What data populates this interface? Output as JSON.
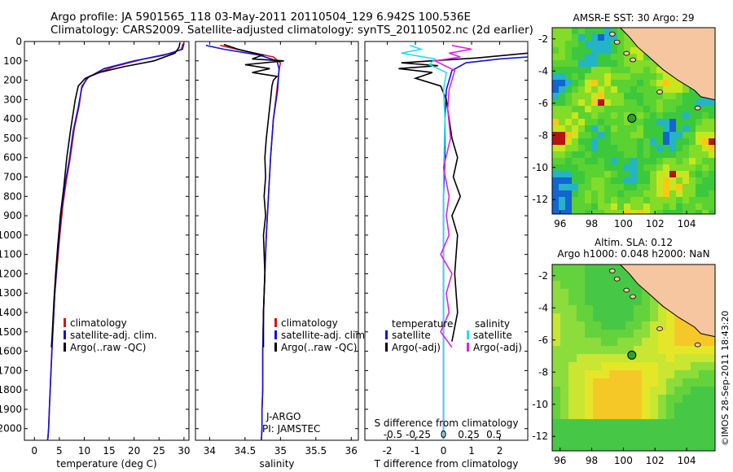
{
  "header": {
    "title_line1": "Argo profile: JA 5901565_118 03-May-2011 20110504_129 6.942S 100.536E",
    "title_line2": "Climatology: CARS2009. Satellite-adjusted climatology: synTS_20110502.nc (2d earlier)"
  },
  "watermark": "©IMOS 28-Sep-2011 18:43:20",
  "colors": {
    "climatology": "#e01010",
    "satellite": "#1010e0",
    "argo": "#000000",
    "cyan": "#20e0f0",
    "magenta": "#e020e0",
    "land": "#f5c6a0"
  },
  "chart_data": [
    {
      "id": "temperature",
      "type": "line",
      "xlabel": "temperature (deg C)",
      "ylabel": "",
      "xlim": [
        -2,
        31
      ],
      "ylim": [
        2060,
        0
      ],
      "xticks": [
        0,
        5,
        10,
        15,
        20,
        25,
        30
      ],
      "xticklabels": [
        "0",
        "5",
        "10",
        "15",
        "20",
        "25",
        "30"
      ],
      "yticks": [
        0,
        100,
        200,
        300,
        400,
        500,
        600,
        700,
        800,
        900,
        1000,
        1100,
        1200,
        1300,
        1400,
        1500,
        1600,
        1700,
        1800,
        1900,
        2000
      ],
      "yticklabels": [
        "0",
        "100",
        "200",
        "300",
        "400",
        "500",
        "600",
        "700",
        "800",
        "900",
        "1000",
        "1100",
        "1200",
        "1300",
        "1400",
        "1500",
        "1600",
        "1700",
        "1800",
        "1900",
        "2000"
      ],
      "legend": [
        "climatology",
        "satellite-adj. clim.",
        "Argo(..raw -QC)"
      ],
      "annotations": [],
      "series": [
        {
          "name": "climatology",
          "color": "#e01010",
          "x": [
            29.8,
            29.5,
            27.5,
            22,
            16,
            11,
            9.5,
            9,
            8,
            7.2,
            6.4,
            5.7,
            5.1,
            4.6,
            4.1,
            3.8,
            3.5,
            3.25,
            3.0,
            2.85,
            2.7,
            2.6
          ],
          "y": [
            10,
            40,
            60,
            90,
            130,
            180,
            230,
            330,
            450,
            600,
            720,
            850,
            1000,
            1150,
            1300,
            1450,
            1600,
            1750,
            1900,
            2000,
            2050,
            2060
          ]
        },
        {
          "name": "satellite-adj. clim.",
          "color": "#1010e0",
          "x": [
            30.0,
            29.7,
            26,
            20,
            14,
            10.5,
            9.5,
            8.8,
            7.8,
            7.0,
            6.2,
            5.5,
            5.0,
            4.5,
            4.1,
            3.8,
            3.5,
            3.25,
            3.0,
            2.85,
            2.7,
            2.6
          ],
          "y": [
            10,
            40,
            70,
            100,
            140,
            190,
            240,
            340,
            460,
            610,
            730,
            860,
            1000,
            1150,
            1300,
            1450,
            1600,
            1750,
            1900,
            2000,
            2050,
            2060
          ]
        },
        {
          "name": "Argo(..raw -QC)",
          "color": "#000000",
          "x": [
            29.2,
            29.0,
            28.2,
            24,
            18,
            13,
            10.2,
            8.8,
            8.2,
            7.3,
            6.5,
            5.9,
            5.2,
            4.7,
            4.25,
            3.9,
            3.6,
            3.4
          ],
          "y": [
            5,
            30,
            60,
            100,
            130,
            160,
            190,
            230,
            300,
            450,
            600,
            750,
            900,
            1050,
            1200,
            1350,
            1500,
            1580
          ]
        }
      ]
    },
    {
      "id": "salinity",
      "type": "line",
      "xlabel": "salinity",
      "ylabel": "",
      "xlim": [
        33.8,
        36.1
      ],
      "ylim": [
        2060,
        0
      ],
      "xticks": [
        34,
        34.5,
        35,
        35.5,
        36
      ],
      "xticklabels": [
        "34",
        "34.5",
        "35",
        "35.5",
        "36"
      ],
      "yticks": [],
      "yticklabels": [],
      "legend": [
        "climatology",
        "satellite-adj. clim.",
        "Argo(..raw -QC)"
      ],
      "annotations": [
        "J-ARGO",
        "PI: JAMSTEC"
      ],
      "series": [
        {
          "name": "climatology",
          "color": "#e01010",
          "x": [
            34.15,
            34.5,
            34.9,
            35.0,
            34.98,
            34.95,
            34.9,
            34.86,
            34.83,
            34.8,
            34.78,
            34.76,
            34.75,
            34.75,
            34.74,
            34.74,
            34.73
          ],
          "y": [
            20,
            50,
            80,
            110,
            150,
            250,
            400,
            600,
            800,
            1000,
            1200,
            1400,
            1600,
            1800,
            1900,
            2000,
            2060
          ]
        },
        {
          "name": "satellite-adj. clim.",
          "color": "#1010e0",
          "x": [
            33.95,
            34.2,
            34.7,
            34.95,
            34.98,
            34.96,
            34.9,
            34.86,
            34.83,
            34.8,
            34.78,
            34.76,
            34.75,
            34.75,
            34.74,
            34.74,
            34.73
          ],
          "y": [
            20,
            40,
            70,
            100,
            140,
            250,
            400,
            600,
            800,
            1000,
            1200,
            1400,
            1600,
            1800,
            1900,
            2000,
            2060
          ]
        },
        {
          "name": "Argo(..raw -QC)",
          "color": "#000000",
          "x": [
            34.2,
            34.4,
            34.75,
            34.6,
            35.05,
            34.5,
            34.85,
            34.6,
            34.95,
            34.9,
            34.88,
            34.86,
            34.83,
            34.8,
            34.78,
            34.79,
            34.77,
            34.79,
            34.76,
            34.78,
            34.76,
            34.76
          ],
          "y": [
            15,
            40,
            70,
            90,
            100,
            120,
            140,
            160,
            180,
            200,
            230,
            300,
            400,
            500,
            600,
            700,
            800,
            900,
            1000,
            1200,
            1400,
            1580
          ]
        }
      ]
    },
    {
      "id": "difference",
      "type": "line",
      "xlabel": "T difference from climatology",
      "xlabel_top": "S difference from climatology",
      "ylabel": "",
      "xlim": [
        -2.8,
        3.0
      ],
      "ylim": [
        2060,
        0
      ],
      "xticks": [
        -2,
        -1,
        0,
        1,
        2
      ],
      "xticklabels": [
        "-2",
        "-1",
        "0",
        "1",
        "2"
      ],
      "xticks_top": [
        -1.8,
        -0.9,
        0,
        0.9,
        1.8
      ],
      "xticklabels_top": [
        "-0.5",
        "-0.25",
        "0",
        "0.25",
        "0.5"
      ],
      "yticks": [],
      "yticklabels": [],
      "legend_temperature_title": "temperature",
      "legend_salinity_title": "salinity",
      "legend": [
        "satellite",
        "Argo(-adj)",
        "satellite",
        "Argo(-adj)"
      ],
      "annotations": [],
      "series": [
        {
          "name": "temperature satellite",
          "color": "#1010e0",
          "x": [
            3.0,
            2.0,
            0.8,
            0.3,
            0.1,
            0.05,
            0.05,
            0.0,
            0.0,
            0.0,
            0.0
          ],
          "y": [
            80,
            90,
            110,
            150,
            250,
            400,
            600,
            800,
            1000,
            1400,
            2060
          ]
        },
        {
          "name": "temperature Argo(-adj)",
          "color": "#000000",
          "x": [
            3.0,
            1.2,
            -1.5,
            -0.2,
            -1.6,
            -0.4,
            -1.0,
            -0.1,
            0.1,
            0.2,
            0.3,
            0.5,
            0.35,
            0.6,
            0.3,
            0.5,
            0.4,
            0.5,
            0.3
          ],
          "y": [
            60,
            85,
            110,
            125,
            140,
            160,
            190,
            230,
            300,
            400,
            500,
            600,
            700,
            800,
            900,
            1000,
            1200,
            1400,
            1550
          ]
        },
        {
          "name": "salinity satellite",
          "color": "#20e0f0",
          "x": [
            -1.2,
            -0.8,
            -1.5,
            -0.3,
            -0.5,
            0.1,
            0.0,
            0.05,
            0.0,
            0.0,
            0.0,
            0.0
          ],
          "y": [
            20,
            40,
            60,
            90,
            120,
            160,
            250,
            400,
            700,
            1000,
            1500,
            2060
          ]
        },
        {
          "name": "salinity Argo(-adj)",
          "color": "#e020e0",
          "x": [
            0.3,
            1.0,
            0.2,
            0.6,
            -0.3,
            0.4,
            0.2,
            0.15,
            0.25,
            0.0,
            0.2,
            0.1,
            0.2,
            -0.1,
            0.3,
            0.1,
            0.2,
            -0.1,
            0.3
          ],
          "y": [
            20,
            40,
            60,
            80,
            100,
            150,
            250,
            350,
            500,
            650,
            800,
            900,
            1000,
            1100,
            1200,
            1300,
            1400,
            1500,
            1580
          ]
        }
      ]
    },
    {
      "id": "sst_map",
      "type": "heatmap",
      "title": "AMSR-E SST: 30 Argo: 29",
      "xlim": [
        95.5,
        105.8
      ],
      "ylim": [
        -12.9,
        -1.3
      ],
      "xticks": [
        96,
        98,
        100,
        102,
        104
      ],
      "xticklabels": [
        "96",
        "98",
        "100",
        "102",
        "104"
      ],
      "yticks": [
        -2,
        -4,
        -6,
        -8,
        -10,
        -12
      ],
      "yticklabels": [
        "-2",
        "-4",
        "-6",
        "-8",
        "-10",
        "-12"
      ],
      "float_position": {
        "lon": 100.536,
        "lat": -6.942
      }
    },
    {
      "id": "sla_map",
      "type": "heatmap",
      "title_line1": "Altim. SLA: 0.12",
      "title_line2": "Argo h1000: 0.048 h2000: NaN",
      "xlim": [
        95.5,
        105.8
      ],
      "ylim": [
        -12.9,
        -1.3
      ],
      "xticks": [
        96,
        98,
        100,
        102,
        104
      ],
      "xticklabels": [
        "96",
        "98",
        "100",
        "102",
        "104"
      ],
      "yticks": [
        -2,
        -4,
        -6,
        -8,
        -10,
        -12
      ],
      "yticklabels": [
        "-2",
        "-4",
        "-6",
        "-8",
        "-10",
        "-12"
      ],
      "float_position": {
        "lon": 100.536,
        "lat": -6.942
      }
    }
  ]
}
